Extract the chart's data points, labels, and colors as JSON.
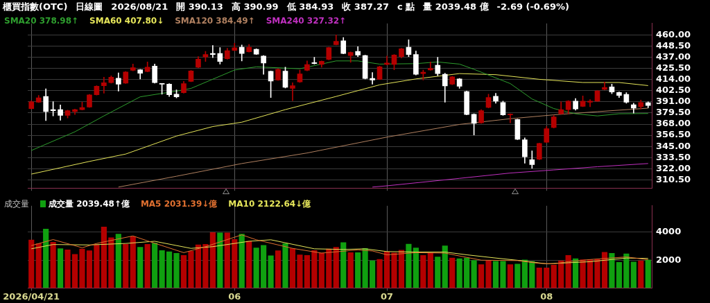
{
  "chart_data": [
    {
      "type": "candlestick",
      "title": "櫃買指數(OTC)",
      "annotations": [
        "日線圖",
        "2026/08/21",
        "開 390.13",
        "高 390.99",
        "低 384.93",
        "收 387.27",
        "c 點",
        "量 2039.48 億",
        "-2.69 (-0.69%)"
      ],
      "categories": [
        "2026/04/21",
        null,
        null,
        null,
        null,
        null,
        null,
        null,
        null,
        null,
        null,
        null,
        null,
        null,
        null,
        null,
        null,
        null,
        null,
        null,
        null,
        null,
        null,
        null,
        null,
        null,
        null,
        null,
        "06",
        null,
        null,
        null,
        null,
        null,
        null,
        null,
        null,
        null,
        null,
        null,
        null,
        null,
        null,
        null,
        null,
        null,
        null,
        null,
        null,
        "07",
        null,
        null,
        null,
        null,
        null,
        null,
        null,
        null,
        null,
        null,
        null,
        null,
        null,
        null,
        null,
        null,
        null,
        null,
        null,
        null,
        null,
        "08",
        null,
        null,
        null,
        null,
        null,
        null,
        null,
        null,
        null,
        null,
        null,
        null,
        null,
        null
      ],
      "ohlc": [
        [
          384.1,
          392.2,
          383.7,
          391.1
        ],
        [
          390.7,
          397.7,
          390.3,
          395.1
        ],
        [
          396.6,
          404.4,
          371.7,
          380.9
        ],
        [
          383.0,
          391.3,
          376.5,
          381.9
        ],
        [
          383.0,
          387.8,
          372.1,
          377.1
        ],
        [
          377.1,
          382.4,
          374.3,
          381.9
        ],
        [
          380.9,
          383.5,
          378.0,
          383.0
        ],
        [
          383.0,
          390.7,
          382.6,
          385.2
        ],
        [
          385.7,
          398.8,
          385.2,
          398.3
        ],
        [
          398.3,
          407.7,
          397.9,
          407.1
        ],
        [
          407.7,
          416.5,
          399.9,
          410.8
        ],
        [
          410.8,
          418.0,
          410.4,
          416.5
        ],
        [
          415.4,
          420.9,
          402.1,
          409.3
        ],
        [
          410.4,
          422.4,
          409.9,
          421.9
        ],
        [
          423.5,
          430.0,
          423.0,
          426.3
        ],
        [
          424.1,
          424.6,
          414.7,
          420.6
        ],
        [
          422.4,
          432.2,
          422.0,
          426.8
        ],
        [
          427.9,
          430.0,
          410.4,
          410.8
        ],
        [
          409.7,
          409.9,
          398.8,
          409.3
        ],
        [
          409.3,
          409.9,
          396.6,
          398.3
        ],
        [
          399.0,
          403.4,
          395.1,
          396.2
        ],
        [
          400.5,
          412.1,
          399.9,
          409.9
        ],
        [
          412.1,
          423.5,
          411.7,
          423.0
        ],
        [
          426.8,
          437.7,
          426.3,
          435.1
        ],
        [
          437.3,
          443.2,
          432.7,
          439.9
        ],
        [
          441.0,
          449.3,
          436.6,
          439.9
        ],
        [
          441.0,
          447.1,
          430.0,
          432.7
        ],
        [
          435.5,
          446.4,
          435.1,
          443.8
        ],
        [
          444.2,
          451.5,
          443.8,
          446.9
        ],
        [
          447.5,
          449.7,
          433.3,
          441.0
        ],
        [
          442.7,
          450.4,
          442.3,
          447.5
        ],
        [
          445.3,
          445.8,
          439.9,
          440.3
        ],
        [
          438.3,
          438.8,
          419.5,
          431.1
        ],
        [
          422.6,
          423.0,
          395.5,
          412.5
        ],
        [
          413.6,
          425.2,
          413.2,
          424.6
        ],
        [
          422.8,
          426.8,
          405.3,
          406.0
        ],
        [
          404.9,
          410.8,
          392.2,
          407.7
        ],
        [
          411.5,
          423.9,
          411.0,
          419.8
        ],
        [
          423.5,
          433.3,
          423.0,
          429.6
        ],
        [
          431.6,
          437.0,
          430.0,
          430.5
        ],
        [
          429.6,
          433.3,
          426.8,
          432.9
        ],
        [
          434.8,
          447.5,
          434.4,
          447.1
        ],
        [
          450.1,
          460.2,
          449.7,
          453.6
        ],
        [
          454.1,
          457.4,
          440.5,
          441.0
        ],
        [
          438.8,
          442.7,
          431.8,
          442.1
        ],
        [
          443.2,
          448.0,
          437.7,
          439.4
        ],
        [
          438.8,
          439.2,
          414.7,
          415.2
        ],
        [
          415.2,
          421.3,
          409.3,
          413.6
        ],
        [
          414.3,
          427.9,
          413.9,
          427.2
        ],
        [
          429.6,
          438.3,
          429.2,
          431.1
        ],
        [
          429.6,
          439.9,
          424.1,
          439.4
        ],
        [
          437.7,
          446.4,
          436.2,
          445.8
        ],
        [
          447.5,
          455.2,
          437.7,
          439.9
        ],
        [
          439.9,
          443.6,
          418.7,
          419.5
        ],
        [
          420.2,
          423.9,
          413.6,
          421.7
        ],
        [
          423.9,
          432.2,
          423.5,
          425.7
        ],
        [
          428.9,
          437.0,
          418.0,
          420.2
        ],
        [
          419.5,
          420.6,
          390.7,
          407.5
        ],
        [
          409.3,
          417.4,
          408.8,
          416.9
        ],
        [
          414.7,
          415.2,
          404.9,
          407.1
        ],
        [
          401.6,
          402.1,
          377.6,
          378.0
        ],
        [
          378.2,
          378.7,
          356.8,
          368.8
        ],
        [
          369.3,
          383.0,
          368.8,
          381.9
        ],
        [
          385.2,
          399.0,
          384.8,
          395.5
        ],
        [
          396.8,
          399.9,
          389.6,
          391.8
        ],
        [
          390.3,
          391.8,
          377.1,
          377.6
        ],
        [
          377.6,
          378.7,
          369.3,
          378.2
        ],
        [
          372.8,
          373.2,
          352.0,
          352.4
        ],
        [
          351.8,
          353.9,
          327.7,
          334.3
        ],
        [
          331.2,
          340.4,
          322.5,
          326.2
        ],
        [
          331.7,
          348.5,
          331.2,
          348.1
        ],
        [
          349.2,
          365.5,
          348.7,
          363.4
        ],
        [
          364.5,
          376.9,
          364.0,
          375.4
        ],
        [
          378.7,
          391.1,
          378.2,
          383.0
        ],
        [
          383.0,
          392.4,
          378.7,
          391.8
        ],
        [
          391.8,
          394.4,
          382.4,
          383.7
        ],
        [
          386.3,
          397.2,
          385.9,
          391.8
        ],
        [
          390.7,
          393.3,
          385.9,
          391.8
        ],
        [
          391.8,
          402.7,
          391.3,
          402.3
        ],
        [
          403.8,
          411.5,
          403.4,
          406.0
        ],
        [
          406.4,
          409.3,
          399.4,
          401.2
        ],
        [
          400.7,
          401.2,
          395.5,
          397.7
        ],
        [
          398.8,
          400.5,
          389.6,
          390.7
        ],
        [
          388.1,
          389.6,
          379.3,
          384.6
        ],
        [
          385.9,
          392.9,
          383.7,
          390.3
        ],
        [
          390.13,
          390.99,
          384.93,
          387.27
        ]
      ],
      "series": [
        {
          "type": "line",
          "name": "SMA20 378.98↑",
          "color": "#2e9e2e",
          "values": [
            340.8,
            null,
            null,
            null,
            null,
            null,
            360.1,
            null,
            null,
            null,
            376.5,
            null,
            null,
            null,
            null,
            396.2,
            null,
            null,
            null,
            null,
            402.1,
            null,
            404.9,
            null,
            null,
            null,
            null,
            null,
            423.9,
            null,
            null,
            427.2,
            null,
            null,
            null,
            null,
            null,
            425.2,
            null,
            null,
            null,
            null,
            433.3,
            null,
            null,
            433.3,
            null,
            null,
            430.0,
            null,
            null,
            null,
            null,
            430.5,
            null,
            null,
            432.2,
            null,
            null,
            430.0,
            null,
            424.6,
            null,
            null,
            null,
            null,
            409.9,
            null,
            null,
            394.0,
            null,
            null,
            384.1,
            null,
            null,
            378.7,
            null,
            null,
            376.5,
            null,
            null,
            378.7,
            null,
            null,
            null,
            378.98
          ]
        },
        {
          "type": "line",
          "name": "SMA60 407.80↓",
          "color": "#e6e65a",
          "values": [
            316.4,
            null,
            null,
            null,
            null,
            null,
            null,
            null,
            329.5,
            null,
            null,
            null,
            null,
            337.1,
            null,
            null,
            null,
            null,
            null,
            null,
            355.7,
            null,
            null,
            null,
            null,
            365.5,
            null,
            null,
            null,
            370.0,
            null,
            null,
            null,
            null,
            null,
            383.0,
            null,
            null,
            null,
            null,
            null,
            null,
            396.6,
            null,
            null,
            null,
            null,
            null,
            408.6,
            null,
            null,
            null,
            null,
            414.7,
            null,
            null,
            null,
            null,
            null,
            420.2,
            null,
            null,
            null,
            null,
            419.1,
            null,
            null,
            null,
            null,
            null,
            414.3,
            null,
            null,
            null,
            null,
            null,
            411.0,
            null,
            null,
            null,
            null,
            411.0,
            null,
            null,
            null,
            407.8
          ]
        },
        {
          "type": "line",
          "name": "SMA120 384.49↑",
          "color": "#b08060",
          "values": [
            null,
            null,
            null,
            null,
            null,
            null,
            null,
            null,
            null,
            null,
            null,
            null,
            303.0,
            null,
            null,
            null,
            null,
            null,
            null,
            null,
            314.2,
            null,
            null,
            null,
            null,
            null,
            null,
            null,
            null,
            327.3,
            null,
            null,
            null,
            null,
            null,
            null,
            null,
            null,
            338.2,
            null,
            null,
            null,
            null,
            null,
            null,
            null,
            null,
            null,
            null,
            354.6,
            null,
            null,
            null,
            null,
            null,
            null,
            null,
            null,
            null,
            367.7,
            null,
            null,
            null,
            null,
            null,
            null,
            373.6,
            null,
            null,
            null,
            null,
            null,
            377.6,
            null,
            null,
            null,
            null,
            null,
            380.9,
            null,
            null,
            null,
            null,
            null,
            null,
            384.49
          ]
        },
        {
          "type": "line",
          "name": "SMA240 327.32↑",
          "color": "#c030c0",
          "values": [
            null,
            null,
            null,
            null,
            null,
            null,
            null,
            null,
            null,
            null,
            null,
            null,
            null,
            null,
            null,
            null,
            null,
            null,
            null,
            null,
            null,
            null,
            null,
            null,
            null,
            null,
            null,
            null,
            null,
            null,
            null,
            null,
            null,
            null,
            null,
            null,
            null,
            null,
            null,
            null,
            null,
            null,
            null,
            null,
            null,
            null,
            null,
            303.0,
            null,
            304.3,
            null,
            null,
            null,
            null,
            null,
            null,
            null,
            null,
            null,
            312.0,
            null,
            null,
            null,
            null,
            null,
            null,
            317.5,
            null,
            null,
            null,
            null,
            null,
            320.7,
            null,
            null,
            null,
            null,
            null,
            324.0,
            null,
            null,
            null,
            null,
            null,
            null,
            327.32
          ]
        }
      ],
      "ylim": [
        302,
        472
      ],
      "yticks": [
        {
          "value": 310.5,
          "label": "310.50"
        },
        {
          "value": 322,
          "label": "322.00"
        },
        {
          "value": 333.5,
          "label": "333.50"
        },
        {
          "value": 345,
          "label": "345.00"
        },
        {
          "value": 356.5,
          "label": "356.50"
        },
        {
          "value": 368,
          "label": "368.00"
        },
        {
          "value": 379.5,
          "label": "379.50"
        },
        {
          "value": 391,
          "label": "391.00"
        },
        {
          "value": 402.5,
          "label": "402.50"
        },
        {
          "value": 414,
          "label": "414.00"
        },
        {
          "value": 425.5,
          "label": "425.50"
        },
        {
          "value": 437,
          "label": "437.00"
        },
        {
          "value": 448.5,
          "label": "448.50"
        },
        {
          "value": 460,
          "label": "460.00"
        }
      ],
      "grid": true,
      "legend": "top left",
      "tick_labels": "y"
    },
    {
      "type": "bar",
      "title": "成交量",
      "categories": [
        "2026/04/21",
        null,
        null,
        null,
        null,
        null,
        null,
        null,
        null,
        null,
        null,
        null,
        null,
        null,
        null,
        null,
        null,
        null,
        null,
        null,
        null,
        null,
        null,
        null,
        null,
        null,
        null,
        null,
        "06",
        null,
        null,
        null,
        null,
        null,
        null,
        null,
        null,
        null,
        null,
        null,
        null,
        null,
        null,
        null,
        null,
        null,
        null,
        null,
        null,
        "07",
        null,
        null,
        null,
        null,
        null,
        null,
        null,
        null,
        null,
        null,
        null,
        null,
        null,
        null,
        null,
        null,
        null,
        null,
        null,
        null,
        null,
        "08",
        null,
        null,
        null,
        null,
        null,
        null,
        null,
        null,
        null,
        null,
        null,
        null,
        null,
        null
      ],
      "series": [
        {
          "name": "成交量 2039.48↑億",
          "color": "#ffffff",
          "colors": [
            "#b40000",
            "#b40000",
            "#10a010",
            "#b40000",
            "#10a010",
            "#b40000",
            "#b40000",
            "#b40000",
            "#b40000",
            "#b40000",
            "#b40000",
            "#b40000",
            "#10a010",
            "#b40000",
            "#b40000",
            "#10a010",
            "#b40000",
            "#10a010",
            "#10a010",
            "#10a010",
            "#10a010",
            "#b40000",
            "#b40000",
            "#b40000",
            "#b40000",
            "#b40000",
            "#10a010",
            "#b40000",
            "#b40000",
            "#10a010",
            "#b40000",
            "#10a010",
            "#10a010",
            "#10a010",
            "#b40000",
            "#10a010",
            "#b40000",
            "#b40000",
            "#b40000",
            "#b40000",
            "#b40000",
            "#b40000",
            "#b40000",
            "#10a010",
            "#b40000",
            "#10a010",
            "#10a010",
            "#10a010",
            "#b40000",
            "#b40000",
            "#b40000",
            "#b40000",
            "#10a010",
            "#10a010",
            "#b40000",
            "#b40000",
            "#10a010",
            "#10a010",
            "#b40000",
            "#10a010",
            "#10a010",
            "#10a010",
            "#b40000",
            "#b40000",
            "#10a010",
            "#10a010",
            "#b40000",
            "#10a010",
            "#10a010",
            "#10a010",
            "#b40000",
            "#b40000",
            "#b40000",
            "#b40000",
            "#b40000",
            "#10a010",
            "#b40000",
            "#b40000",
            "#b40000",
            "#b40000",
            "#10a010",
            "#10a010",
            "#10a010",
            "#10a010",
            "#b40000",
            "#10a010"
          ],
          "values": [
            3461,
            3199,
            4246,
            3307,
            2845,
            2752,
            2429,
            2814,
            2691,
            3122,
            4400,
            3630,
            3892,
            3153,
            3707,
            2937,
            3153,
            3245,
            2706,
            2614,
            2506,
            2352,
            2660,
            3122,
            3153,
            4000,
            3969,
            3969,
            3507,
            3892,
            3384,
            2891,
            3076,
            2337,
            2691,
            3199,
            2845,
            2398,
            2352,
            2706,
            2537,
            2814,
            2937,
            3276,
            2552,
            2552,
            2860,
            1967,
            2075,
            2614,
            2537,
            2737,
            3168,
            2891,
            2352,
            2506,
            2244,
            3045,
            2167,
            2121,
            2167,
            1998,
            1705,
            1967,
            1936,
            1936,
            1705,
            1736,
            2029,
            1921,
            1459,
            1459,
            1659,
            1967,
            2352,
            2121,
            2044,
            2044,
            2075,
            2583,
            2506,
            1859,
            2475,
            1890,
            1967,
            2039.48
          ]
        },
        {
          "type": "line",
          "name": "MA5 2031.39↓億",
          "color": "#e07030",
          "values": [
            3045,
            null,
            null,
            3476,
            null,
            null,
            null,
            2891,
            null,
            3199,
            null,
            null,
            null,
            null,
            3738,
            null,
            3384,
            null,
            null,
            null,
            null,
            2537,
            null,
            null,
            2968,
            null,
            null,
            null,
            null,
            3815,
            null,
            3461,
            null,
            null,
            null,
            null,
            2845,
            null,
            null,
            null,
            2506,
            null,
            null,
            null,
            null,
            2737,
            null,
            2660,
            null,
            2383,
            null,
            null,
            null,
            2537,
            null,
            null,
            null,
            2506,
            null,
            null,
            2198,
            null,
            1998,
            null,
            null,
            null,
            null,
            1967,
            null,
            null,
            1767,
            null,
            1736,
            null,
            1890,
            null,
            null,
            2044,
            null,
            2121,
            null,
            null,
            2229,
            null,
            null,
            2031.39
          ]
        },
        {
          "type": "line",
          "name": "MA10 2122.64↓億",
          "color": "#e6e65a",
          "values": [
            2814,
            null,
            null,
            3122,
            null,
            null,
            null,
            null,
            3092,
            null,
            null,
            null,
            null,
            3199,
            null,
            null,
            null,
            3353,
            null,
            null,
            null,
            null,
            2845,
            null,
            null,
            2968,
            null,
            null,
            null,
            null,
            3353,
            null,
            null,
            3461,
            null,
            null,
            null,
            null,
            null,
            2814,
            null,
            null,
            null,
            2768,
            null,
            null,
            2814,
            null,
            null,
            2614,
            null,
            null,
            null,
            2583,
            null,
            null,
            null,
            2583,
            null,
            null,
            2383,
            null,
            null,
            null,
            2152,
            null,
            null,
            null,
            1936,
            null,
            null,
            1736,
            null,
            null,
            1813,
            null,
            null,
            1890,
            null,
            null,
            null,
            null,
            2152,
            null,
            null,
            2122.64
          ]
        }
      ],
      "ylim": [
        0,
        5900
      ],
      "yticks": [
        2000,
        4000
      ],
      "grid": true,
      "legend": "top left"
    }
  ]
}
